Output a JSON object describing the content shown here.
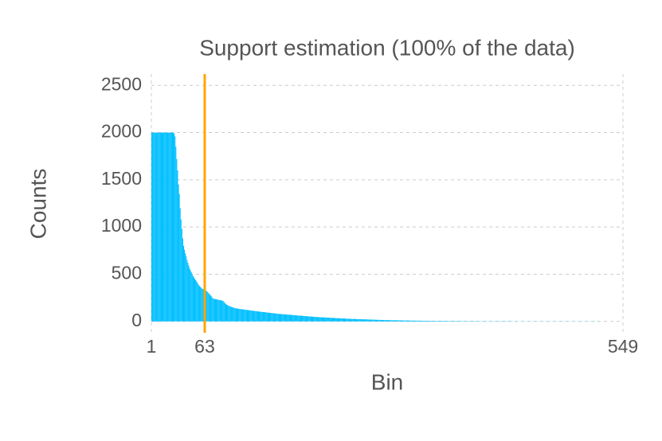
{
  "chart_data": {
    "type": "bar",
    "title": "Support estimation (100% of the data)",
    "xlabel": "Bin",
    "ylabel": "Counts",
    "color": "#00bfff",
    "vline": 63,
    "vline_color": "#ffa500",
    "grid": true,
    "xlim": [
      1,
      549
    ],
    "xticks": [
      1,
      63,
      549
    ],
    "ylim": [
      -120,
      2620
    ],
    "yticks": [
      0,
      500,
      1000,
      1500,
      2000,
      2500
    ],
    "x": [
      1,
      2,
      3,
      4,
      5,
      6,
      7,
      8,
      9,
      10,
      11,
      12,
      13,
      14,
      15,
      16,
      17,
      18,
      19,
      20,
      21,
      22,
      23,
      24,
      25,
      26,
      27,
      28,
      29,
      30,
      31,
      32,
      33,
      34,
      35,
      36,
      37,
      38,
      39,
      40,
      41,
      42,
      43,
      44,
      45,
      46,
      47,
      48,
      49,
      50,
      51,
      52,
      53,
      54,
      55,
      56,
      57,
      58,
      59,
      60,
      61,
      62,
      63,
      64,
      65,
      66,
      67,
      68,
      69,
      70,
      71,
      72,
      73,
      74,
      75,
      76,
      77,
      78,
      79,
      80,
      81,
      82,
      83,
      84,
      85,
      86,
      87,
      88,
      89,
      90,
      91,
      92,
      93,
      94,
      95,
      96,
      97,
      98,
      99,
      100,
      101,
      102,
      103,
      104,
      105,
      106,
      107,
      108,
      109,
      110,
      111,
      112,
      113,
      114,
      115,
      116,
      117,
      118,
      119,
      120,
      121,
      122,
      123,
      124,
      125,
      126,
      127,
      128,
      129,
      130,
      131,
      132,
      133,
      134,
      135,
      136,
      137,
      138,
      139,
      140,
      141,
      142,
      143,
      144,
      145,
      146,
      147,
      148,
      149,
      150,
      151,
      152,
      153,
      154,
      155,
      156,
      157,
      158,
      159,
      160,
      161,
      162,
      163,
      164,
      165,
      166,
      167,
      168,
      169,
      170,
      171,
      172,
      173,
      174,
      175,
      176,
      177,
      178,
      179,
      180,
      181,
      182,
      183,
      184,
      185,
      186,
      187,
      188,
      189,
      190,
      191,
      192,
      193,
      194,
      195,
      196,
      197,
      198,
      199,
      200,
      201,
      202,
      203,
      204,
      205,
      206,
      207,
      208,
      209,
      210,
      211,
      212,
      213,
      214,
      215,
      216,
      217,
      218,
      219,
      220,
      221,
      222,
      223,
      224,
      225,
      226,
      227,
      228,
      229,
      230,
      231,
      232,
      233,
      234,
      235,
      236,
      237,
      238,
      239,
      240,
      241,
      242,
      243,
      244,
      245,
      246,
      247,
      248,
      249,
      250,
      251,
      252,
      253,
      254,
      255,
      256,
      257,
      258,
      259,
      260,
      261,
      262,
      263,
      264,
      265,
      266,
      267,
      268,
      269,
      270,
      271,
      272,
      273,
      274,
      275,
      276,
      277,
      278,
      279,
      280,
      281,
      282,
      283,
      284,
      285,
      286,
      287,
      288,
      289,
      290,
      291,
      292,
      293,
      294,
      295,
      296,
      297,
      298,
      299,
      300,
      301,
      302,
      303,
      304,
      305,
      306,
      307,
      308,
      309,
      310,
      311,
      312,
      313,
      314,
      315,
      316,
      317,
      318,
      319,
      320,
      321,
      322,
      323,
      324,
      325,
      326,
      327,
      328,
      329,
      330,
      331,
      332,
      333,
      334,
      335,
      336,
      337,
      338,
      339,
      340,
      341,
      342,
      343,
      344,
      345,
      346,
      347,
      348,
      349,
      350,
      351,
      352,
      353,
      354,
      355,
      356,
      357,
      358,
      359,
      360,
      361,
      362,
      363,
      364,
      365,
      366,
      367,
      368,
      369,
      370,
      371,
      372,
      373,
      374,
      375,
      376,
      377,
      378,
      379,
      380,
      381,
      382,
      383,
      384,
      385,
      386,
      387,
      388,
      389,
      390,
      391,
      392,
      393,
      394,
      395,
      396,
      397,
      398,
      399,
      400,
      401,
      402,
      403,
      404,
      405,
      406,
      407,
      408,
      409,
      410,
      411,
      412,
      413,
      414,
      415,
      416,
      417,
      418,
      419,
      420,
      421,
      422,
      423,
      424,
      425,
      426,
      427,
      428,
      429,
      430,
      431,
      432,
      433,
      434,
      435,
      436,
      437,
      438,
      439,
      440,
      441,
      442,
      443,
      444,
      445,
      446,
      447,
      448,
      449,
      450,
      451,
      452,
      453,
      454,
      455,
      456,
      457,
      458,
      459,
      460,
      461,
      462,
      463,
      464,
      465,
      466,
      467,
      468,
      469,
      470,
      471,
      472,
      473,
      474,
      475,
      476,
      477,
      478,
      479,
      480,
      481,
      482,
      483,
      484,
      485,
      486,
      487,
      488,
      489,
      490,
      491,
      492,
      493,
      494,
      495,
      496,
      497,
      498,
      499,
      500,
      501,
      502,
      503,
      504,
      505,
      506,
      507,
      508,
      509,
      510,
      511,
      512,
      513,
      514,
      515,
      516,
      517,
      518,
      519,
      520,
      521,
      522,
      523,
      524,
      525,
      526,
      527,
      528,
      529,
      530,
      531,
      532,
      533,
      534,
      535,
      536,
      537,
      538,
      539,
      540,
      541,
      542,
      543,
      544,
      545,
      546,
      547,
      548,
      549
    ],
    "values": [
      2000,
      2000,
      2000,
      2000,
      2000,
      2000,
      2000,
      2000,
      2000,
      2000,
      2000,
      2000,
      2000,
      2000,
      2000,
      2000,
      2000,
      2000,
      2000,
      2000,
      2000,
      2000,
      2000,
      2000,
      2000,
      2000,
      1990,
      1960,
      1850,
      1720,
      1600,
      1450,
      1350,
      1200,
      1080,
      980,
      880,
      800,
      760,
      720,
      690,
      650,
      620,
      590,
      560,
      540,
      520,
      500,
      480,
      465,
      450,
      440,
      425,
      410,
      395,
      380,
      370,
      360,
      350,
      345,
      340,
      335,
      330,
      325,
      320,
      310,
      300,
      290,
      280,
      270,
      255,
      245,
      240,
      238,
      236,
      234,
      232,
      230,
      228,
      226,
      224,
      222,
      220,
      215,
      205,
      195,
      185,
      178,
      172,
      168,
      164,
      160,
      156,
      152,
      149,
      146,
      143,
      140,
      138,
      136,
      135,
      134,
      132,
      131,
      130,
      129,
      127,
      126,
      125,
      124,
      122,
      121,
      120,
      119,
      117,
      116,
      115,
      114,
      112,
      111,
      110,
      109,
      108,
      107,
      105,
      104,
      103,
      102,
      101,
      100,
      99,
      98,
      97,
      96,
      95,
      93,
      92,
      91,
      90,
      89,
      88,
      87,
      86,
      85,
      84,
      83,
      81,
      80,
      79,
      79,
      78,
      77,
      76,
      76,
      75,
      74,
      73,
      73,
      72,
      71,
      70,
      70,
      69,
      68,
      67,
      67,
      66,
      65,
      64,
      64,
      63,
      62,
      61,
      61,
      60,
      59,
      58,
      58,
      57,
      56,
      55,
      55,
      54,
      53,
      52,
      52,
      51,
      50,
      49,
      49,
      48,
      47,
      46,
      46,
      45,
      45,
      44,
      44,
      43,
      43,
      42,
      42,
      41,
      41,
      40,
      40,
      39,
      39,
      38,
      38,
      37,
      37,
      36,
      36,
      35,
      35,
      34,
      34,
      33,
      33,
      32,
      32,
      31,
      31,
      30,
      30,
      29,
      29,
      28,
      28,
      27,
      27,
      27,
      26,
      26,
      26,
      26,
      25,
      25,
      24,
      24,
      24,
      24,
      23,
      23,
      23,
      22,
      22,
      22,
      21,
      21,
      21,
      20,
      20,
      20,
      19,
      19,
      19,
      18,
      18,
      18,
      17,
      17,
      17,
      16,
      16,
      16,
      15,
      15,
      15,
      15,
      14,
      14,
      14,
      14,
      13,
      13,
      13,
      13,
      13,
      12,
      12,
      12,
      12,
      12,
      12,
      12,
      11,
      11,
      11,
      11,
      11,
      10,
      10,
      10,
      10,
      10,
      10,
      9,
      9,
      9,
      9,
      9,
      9,
      8,
      8,
      8,
      8,
      8,
      8,
      8,
      7,
      7,
      7,
      7,
      7,
      7,
      7,
      6,
      6,
      6,
      6,
      6,
      6,
      6,
      6,
      5,
      5,
      5,
      5,
      5,
      5,
      5,
      5,
      5,
      5,
      5,
      5,
      5,
      5,
      5,
      5,
      4,
      4,
      4,
      4,
      4,
      4,
      4,
      4,
      4,
      4,
      4,
      4,
      4,
      4,
      4,
      4,
      4,
      4,
      3,
      3,
      3,
      3,
      3,
      3,
      3,
      3,
      3,
      3,
      3,
      3,
      3,
      3,
      3,
      3,
      3,
      3,
      3,
      2,
      2,
      2,
      2,
      2,
      2,
      2,
      2,
      2,
      2,
      2,
      2,
      2,
      2,
      2,
      2,
      2,
      2,
      2,
      2,
      2,
      2,
      2,
      2,
      2,
      2,
      2,
      2,
      2,
      2,
      2,
      2,
      2,
      2,
      2,
      2,
      2,
      2,
      2,
      2,
      2,
      1,
      1,
      1,
      1,
      1,
      1,
      1,
      1,
      1,
      1,
      1,
      1,
      1,
      1,
      1,
      1,
      1,
      1,
      1,
      1,
      1,
      1,
      1,
      1,
      1,
      1,
      1,
      1,
      1,
      1,
      1,
      1,
      1,
      1,
      1,
      1,
      1,
      1,
      1,
      1,
      1,
      1,
      1,
      1,
      1,
      1,
      1,
      1,
      1,
      1,
      1,
      1,
      1,
      1,
      1,
      1,
      1,
      1,
      1,
      1,
      1,
      1,
      1,
      1,
      1,
      1,
      1,
      1,
      1,
      1,
      1,
      1,
      1,
      1,
      1,
      1,
      1,
      1,
      1,
      1,
      1,
      1,
      1,
      1,
      1,
      1,
      1,
      1,
      1,
      1,
      1,
      1,
      1,
      1,
      1,
      1,
      1,
      1,
      1,
      1,
      0,
      0,
      0,
      0,
      0,
      0,
      0,
      0,
      0,
      0,
      0,
      0,
      0,
      0,
      0,
      0,
      0,
      0,
      0,
      0,
      0,
      0,
      0,
      0,
      0,
      0,
      0,
      0,
      0
    ]
  }
}
